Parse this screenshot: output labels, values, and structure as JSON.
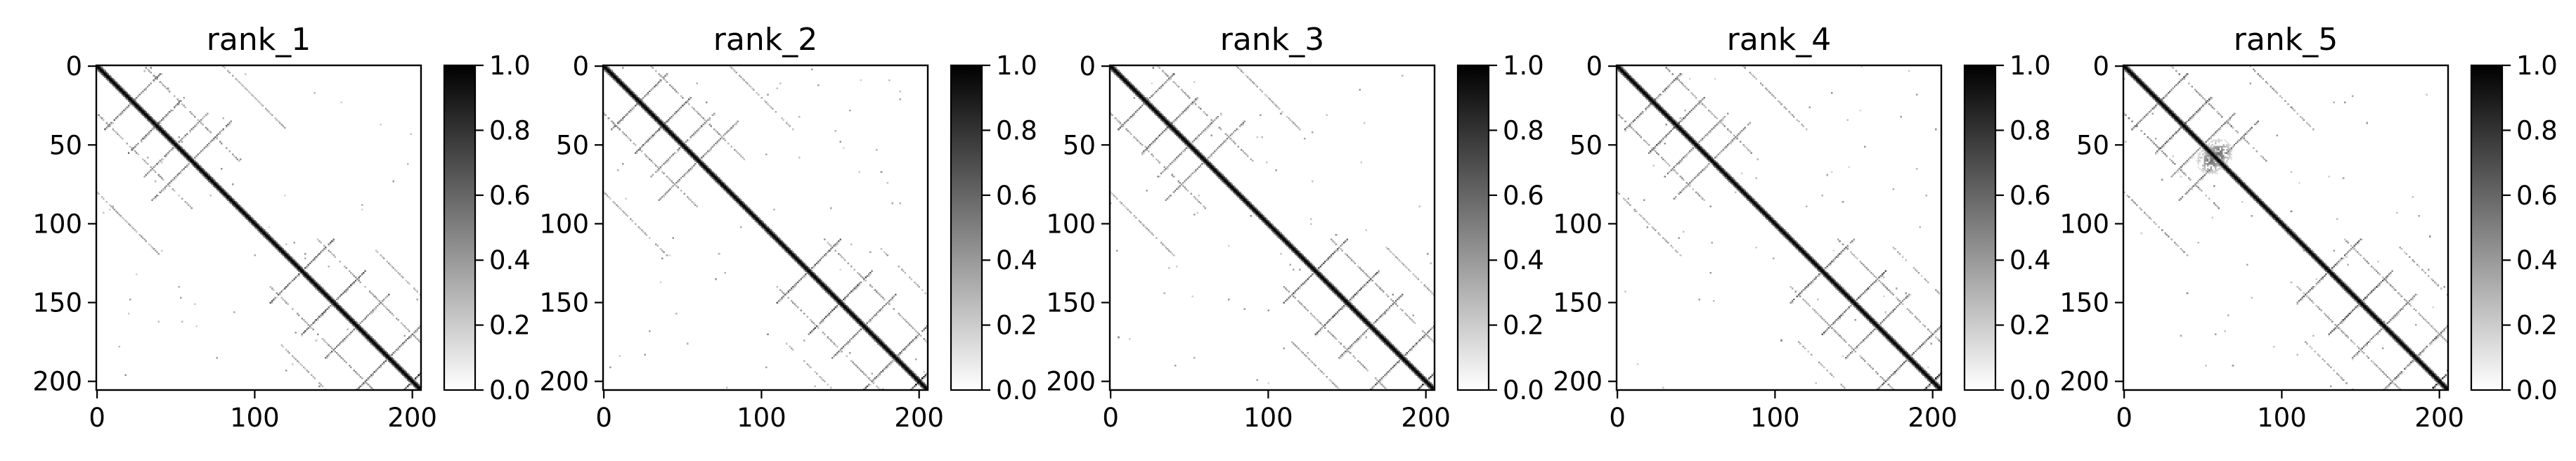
{
  "chart_data": [
    {
      "type": "heatmap",
      "title": "rank_1",
      "matrix_size": 206,
      "xlim": [
        0,
        206
      ],
      "ylim": [
        206,
        0
      ],
      "xticks": [
        0,
        100,
        200
      ],
      "yticks": [
        0,
        50,
        100,
        150,
        200
      ],
      "colormap": "greys",
      "colorbar": {
        "range": [
          0.0,
          1.0
        ],
        "ticks": [
          "0.0",
          "0.2",
          "0.4",
          "0.6",
          "0.8",
          "1.0"
        ]
      },
      "structure": {
        "diagonal": {
          "from": 0,
          "to": 205,
          "value": 1.0
        },
        "antidiagonal_bands": [
          {
            "i_plus_j": 45,
            "range": [
              5,
              40
            ],
            "value": 0.55
          },
          {
            "i_plus_j": 75,
            "range": [
              20,
              55
            ],
            "value": 0.6
          },
          {
            "i_plus_j": 100,
            "range": [
              35,
              70
            ],
            "value": 0.5
          },
          {
            "i_plus_j": 120,
            "range": [
              40,
              85
            ],
            "value": 0.5
          },
          {
            "i_plus_j": 260,
            "range": [
              110,
              150
            ],
            "value": 0.6
          },
          {
            "i_plus_j": 300,
            "range": [
              130,
              170
            ],
            "value": 0.65
          },
          {
            "i_plus_j": 330,
            "range": [
              145,
              185
            ],
            "value": 0.55
          },
          {
            "i_plus_j": 370,
            "range": [
              165,
              205
            ],
            "value": 0.6
          },
          {
            "i_plus_j": 400,
            "range": [
              190,
              205
            ],
            "value": 0.9
          }
        ],
        "parallel_bands": [
          {
            "offset": 30,
            "range": [
              0,
              60
            ],
            "value": 0.45
          },
          {
            "offset": 80,
            "range": [
              0,
              40
            ],
            "value": 0.4
          },
          {
            "offset": 30,
            "range": [
              110,
              175
            ],
            "value": 0.45
          },
          {
            "offset": 60,
            "range": [
              115,
              150
            ],
            "value": 0.4
          }
        ]
      }
    },
    {
      "type": "heatmap",
      "title": "rank_2",
      "matrix_size": 206,
      "xlim": [
        0,
        206
      ],
      "ylim": [
        206,
        0
      ],
      "xticks": [
        0,
        100,
        200
      ],
      "yticks": [
        0,
        50,
        100,
        150,
        200
      ],
      "colormap": "greys",
      "colorbar": {
        "range": [
          0.0,
          1.0
        ],
        "ticks": [
          "0.0",
          "0.2",
          "0.4",
          "0.6",
          "0.8",
          "1.0"
        ]
      },
      "structure": {
        "diagonal": {
          "from": 0,
          "to": 205,
          "value": 1.0
        },
        "antidiagonal_bands": [
          {
            "i_plus_j": 45,
            "range": [
              5,
              40
            ],
            "value": 0.55
          },
          {
            "i_plus_j": 75,
            "range": [
              20,
              55
            ],
            "value": 0.6
          },
          {
            "i_plus_j": 100,
            "range": [
              35,
              70
            ],
            "value": 0.5
          },
          {
            "i_plus_j": 120,
            "range": [
              40,
              85
            ],
            "value": 0.5
          },
          {
            "i_plus_j": 260,
            "range": [
              110,
              150
            ],
            "value": 0.6
          },
          {
            "i_plus_j": 300,
            "range": [
              130,
              170
            ],
            "value": 0.65
          },
          {
            "i_plus_j": 330,
            "range": [
              145,
              185
            ],
            "value": 0.55
          },
          {
            "i_plus_j": 370,
            "range": [
              165,
              205
            ],
            "value": 0.6
          },
          {
            "i_plus_j": 400,
            "range": [
              190,
              205
            ],
            "value": 0.9
          }
        ],
        "parallel_bands": [
          {
            "offset": 30,
            "range": [
              0,
              60
            ],
            "value": 0.45
          },
          {
            "offset": 80,
            "range": [
              0,
              40
            ],
            "value": 0.4
          },
          {
            "offset": 30,
            "range": [
              110,
              175
            ],
            "value": 0.45
          },
          {
            "offset": 60,
            "range": [
              115,
              150
            ],
            "value": 0.4
          }
        ]
      }
    },
    {
      "type": "heatmap",
      "title": "rank_3",
      "matrix_size": 206,
      "xlim": [
        0,
        206
      ],
      "ylim": [
        206,
        0
      ],
      "xticks": [
        0,
        100,
        200
      ],
      "yticks": [
        0,
        50,
        100,
        150,
        200
      ],
      "colormap": "greys",
      "colorbar": {
        "range": [
          0.0,
          1.0
        ],
        "ticks": [
          "0.0",
          "0.2",
          "0.4",
          "0.6",
          "0.8",
          "1.0"
        ]
      },
      "structure": {
        "diagonal": {
          "from": 0,
          "to": 205,
          "value": 1.0
        },
        "antidiagonal_bands": [
          {
            "i_plus_j": 45,
            "range": [
              5,
              40
            ],
            "value": 0.55
          },
          {
            "i_plus_j": 75,
            "range": [
              20,
              55
            ],
            "value": 0.6
          },
          {
            "i_plus_j": 100,
            "range": [
              35,
              70
            ],
            "value": 0.5
          },
          {
            "i_plus_j": 120,
            "range": [
              40,
              85
            ],
            "value": 0.5
          },
          {
            "i_plus_j": 260,
            "range": [
              110,
              150
            ],
            "value": 0.6
          },
          {
            "i_plus_j": 300,
            "range": [
              130,
              170
            ],
            "value": 0.65
          },
          {
            "i_plus_j": 330,
            "range": [
              145,
              185
            ],
            "value": 0.55
          },
          {
            "i_plus_j": 370,
            "range": [
              165,
              205
            ],
            "value": 0.6
          },
          {
            "i_plus_j": 400,
            "range": [
              190,
              205
            ],
            "value": 0.9
          }
        ],
        "parallel_bands": [
          {
            "offset": 30,
            "range": [
              0,
              60
            ],
            "value": 0.45
          },
          {
            "offset": 80,
            "range": [
              0,
              40
            ],
            "value": 0.4
          },
          {
            "offset": 30,
            "range": [
              110,
              175
            ],
            "value": 0.45
          },
          {
            "offset": 60,
            "range": [
              115,
              150
            ],
            "value": 0.4
          }
        ]
      }
    },
    {
      "type": "heatmap",
      "title": "rank_4",
      "matrix_size": 206,
      "xlim": [
        0,
        206
      ],
      "ylim": [
        206,
        0
      ],
      "xticks": [
        0,
        100,
        200
      ],
      "yticks": [
        0,
        50,
        100,
        150,
        200
      ],
      "colormap": "greys",
      "colorbar": {
        "range": [
          0.0,
          1.0
        ],
        "ticks": [
          "0.0",
          "0.2",
          "0.4",
          "0.6",
          "0.8",
          "1.0"
        ]
      },
      "structure": {
        "diagonal": {
          "from": 0,
          "to": 205,
          "value": 1.0
        },
        "antidiagonal_bands": [
          {
            "i_plus_j": 45,
            "range": [
              5,
              40
            ],
            "value": 0.55
          },
          {
            "i_plus_j": 75,
            "range": [
              20,
              55
            ],
            "value": 0.6
          },
          {
            "i_plus_j": 100,
            "range": [
              35,
              70
            ],
            "value": 0.5
          },
          {
            "i_plus_j": 120,
            "range": [
              40,
              85
            ],
            "value": 0.5
          },
          {
            "i_plus_j": 260,
            "range": [
              110,
              150
            ],
            "value": 0.6
          },
          {
            "i_plus_j": 300,
            "range": [
              130,
              170
            ],
            "value": 0.65
          },
          {
            "i_plus_j": 330,
            "range": [
              145,
              185
            ],
            "value": 0.55
          },
          {
            "i_plus_j": 370,
            "range": [
              165,
              205
            ],
            "value": 0.6
          },
          {
            "i_plus_j": 400,
            "range": [
              190,
              205
            ],
            "value": 0.9
          }
        ],
        "parallel_bands": [
          {
            "offset": 30,
            "range": [
              0,
              60
            ],
            "value": 0.45
          },
          {
            "offset": 80,
            "range": [
              0,
              40
            ],
            "value": 0.4
          },
          {
            "offset": 30,
            "range": [
              110,
              175
            ],
            "value": 0.45
          },
          {
            "offset": 60,
            "range": [
              115,
              150
            ],
            "value": 0.4
          }
        ]
      }
    },
    {
      "type": "heatmap",
      "title": "rank_5",
      "matrix_size": 206,
      "xlim": [
        0,
        206
      ],
      "ylim": [
        206,
        0
      ],
      "xticks": [
        0,
        100,
        200
      ],
      "yticks": [
        0,
        50,
        100,
        150,
        200
      ],
      "colormap": "greys",
      "colorbar": {
        "range": [
          0.0,
          1.0
        ],
        "ticks": [
          "0.0",
          "0.2",
          "0.4",
          "0.6",
          "0.8",
          "1.0"
        ]
      },
      "structure": {
        "diagonal": {
          "from": 0,
          "to": 205,
          "value": 1.0
        },
        "antidiagonal_bands": [
          {
            "i_plus_j": 45,
            "range": [
              5,
              40
            ],
            "value": 0.55
          },
          {
            "i_plus_j": 75,
            "range": [
              20,
              55
            ],
            "value": 0.6
          },
          {
            "i_plus_j": 100,
            "range": [
              35,
              70
            ],
            "value": 0.5
          },
          {
            "i_plus_j": 120,
            "range": [
              40,
              85
            ],
            "value": 0.55
          },
          {
            "i_plus_j": 260,
            "range": [
              110,
              150
            ],
            "value": 0.6
          },
          {
            "i_plus_j": 300,
            "range": [
              130,
              170
            ],
            "value": 0.65
          },
          {
            "i_plus_j": 330,
            "range": [
              145,
              185
            ],
            "value": 0.55
          },
          {
            "i_plus_j": 370,
            "range": [
              165,
              205
            ],
            "value": 0.6
          },
          {
            "i_plus_j": 400,
            "range": [
              190,
              205
            ],
            "value": 0.9
          }
        ],
        "parallel_bands": [
          {
            "offset": 30,
            "range": [
              0,
              60
            ],
            "value": 0.5
          },
          {
            "offset": 80,
            "range": [
              0,
              40
            ],
            "value": 0.45
          },
          {
            "offset": 30,
            "range": [
              110,
              175
            ],
            "value": 0.45
          },
          {
            "offset": 60,
            "range": [
              115,
              150
            ],
            "value": 0.4
          }
        ],
        "blob": {
          "center": [
            55,
            60
          ],
          "radius": 9,
          "value": 0.5
        }
      }
    }
  ]
}
